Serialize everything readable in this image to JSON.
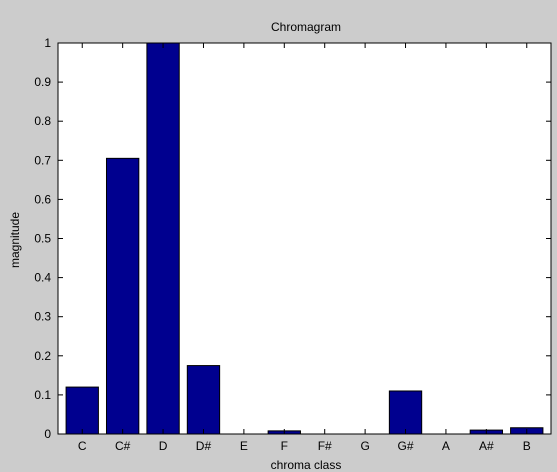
{
  "chart_data": {
    "type": "bar",
    "title": "Chromagram",
    "xlabel": "chroma class",
    "ylabel": "magnitude",
    "categories": [
      "C",
      "C#",
      "D",
      "D#",
      "E",
      "F",
      "F#",
      "G",
      "G#",
      "A",
      "A#",
      "B"
    ],
    "values": [
      0.12,
      0.705,
      1.0,
      0.175,
      0.0,
      0.008,
      0.0,
      0.0,
      0.11,
      0.0,
      0.01,
      0.016
    ],
    "xlim": [
      -0.6,
      11.6
    ],
    "ylim": [
      0,
      1
    ],
    "yticks": [
      "0",
      "0.1",
      "0.2",
      "0.3",
      "0.4",
      "0.5",
      "0.6",
      "0.7",
      "0.8",
      "0.9",
      "1"
    ],
    "grid": false,
    "bar_color": "#00008f",
    "background_color": "#cccccc",
    "plot_background": "#ffffff"
  }
}
